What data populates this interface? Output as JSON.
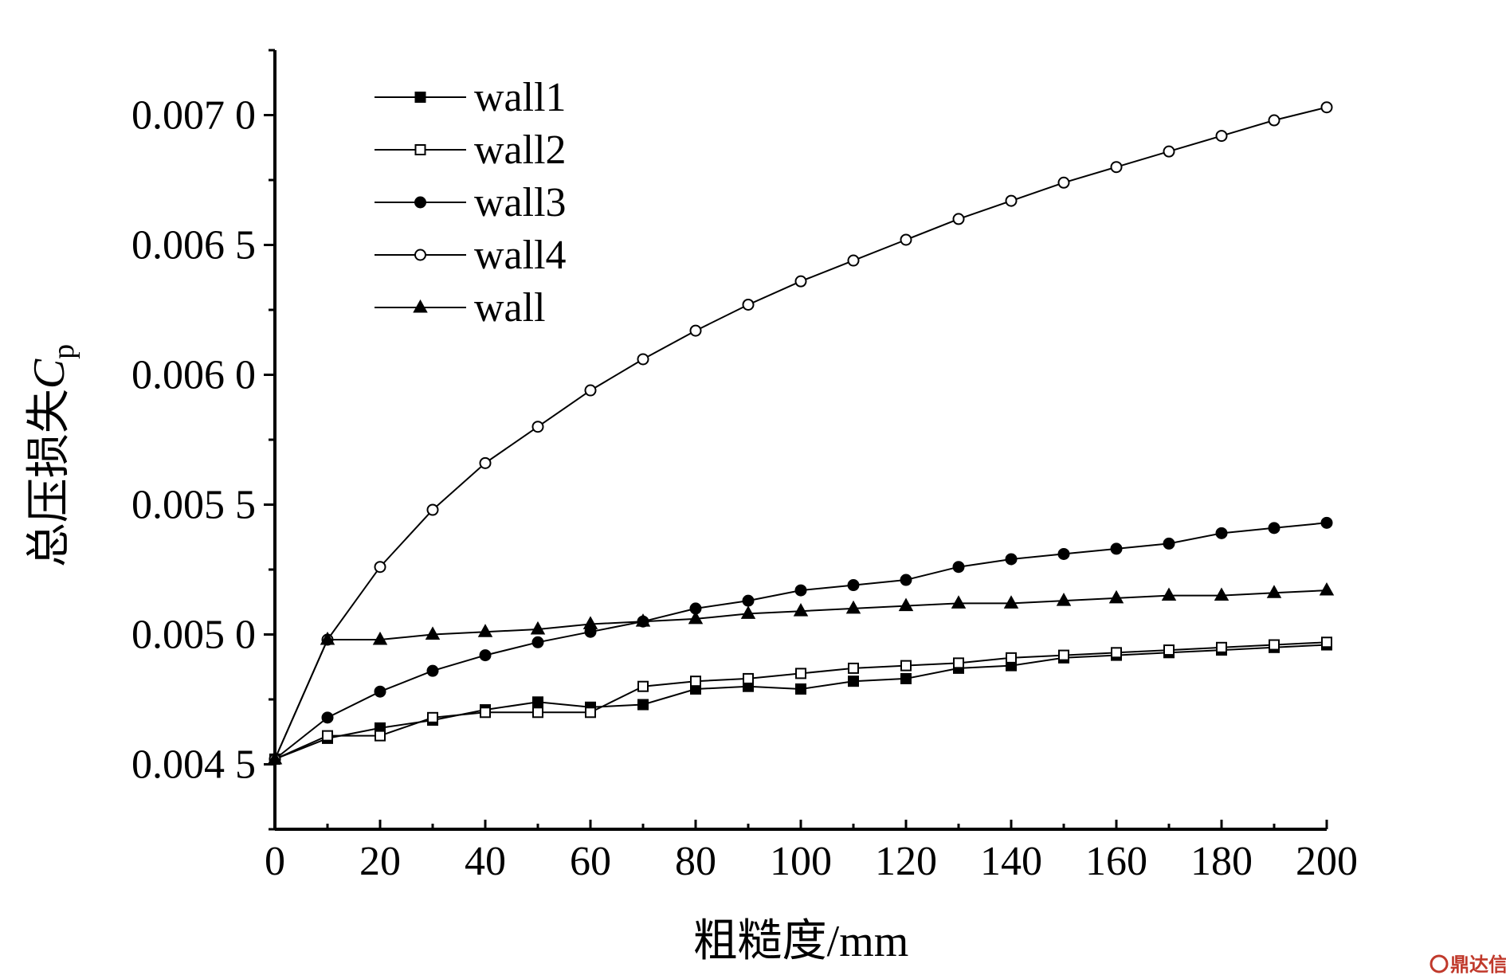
{
  "chart_data": {
    "type": "line",
    "title": "",
    "xlabel": "粗糙度/mm",
    "ylabel": {
      "main": "总压损失",
      "symbol": "C",
      "subscript": "p"
    },
    "xlim": [
      0,
      200
    ],
    "ylim": [
      0.00425,
      0.00725
    ],
    "x_ticks": [
      0,
      20,
      40,
      60,
      80,
      100,
      120,
      140,
      160,
      180,
      200
    ],
    "x_tick_labels": [
      "0",
      "20",
      "40",
      "60",
      "80",
      "100",
      "120",
      "140",
      "160",
      "180",
      "200"
    ],
    "y_ticks": [
      0.0045,
      0.005,
      0.0055,
      0.006,
      0.0065,
      0.007
    ],
    "y_tick_labels": [
      "0.004 5",
      "0.005 0",
      "0.005 5",
      "0.006 0",
      "0.006 5",
      "0.007 0"
    ],
    "grid": false,
    "legend_position": "top-left",
    "x": [
      0,
      10,
      20,
      30,
      40,
      50,
      60,
      70,
      80,
      90,
      100,
      110,
      120,
      130,
      140,
      150,
      160,
      170,
      180,
      190,
      200
    ],
    "series": [
      {
        "name": "wall1",
        "marker": "square-filled",
        "values": [
          0.00452,
          0.0046,
          0.00464,
          0.00467,
          0.00471,
          0.00474,
          0.00472,
          0.00473,
          0.00479,
          0.0048,
          0.00479,
          0.00482,
          0.00483,
          0.00487,
          0.00488,
          0.00491,
          0.00492,
          0.00493,
          0.00494,
          0.00495,
          0.00496
        ]
      },
      {
        "name": "wall2",
        "marker": "square-open",
        "values": [
          0.00452,
          0.00461,
          0.00461,
          0.00468,
          0.0047,
          0.0047,
          0.0047,
          0.0048,
          0.00482,
          0.00483,
          0.00485,
          0.00487,
          0.00488,
          0.00489,
          0.00491,
          0.00492,
          0.00493,
          0.00494,
          0.00495,
          0.00496,
          0.00497
        ]
      },
      {
        "name": "wall3",
        "marker": "circle-filled",
        "values": [
          0.00452,
          0.00468,
          0.00478,
          0.00486,
          0.00492,
          0.00497,
          0.00501,
          0.00505,
          0.0051,
          0.00513,
          0.00517,
          0.00519,
          0.00521,
          0.00526,
          0.00529,
          0.00531,
          0.00533,
          0.00535,
          0.00539,
          0.00541,
          0.00543
        ]
      },
      {
        "name": "wall4",
        "marker": "circle-open",
        "values": [
          0.00452,
          0.00498,
          0.00526,
          0.00548,
          0.00566,
          0.0058,
          0.00594,
          0.00606,
          0.00617,
          0.00627,
          0.00636,
          0.00644,
          0.00652,
          0.0066,
          0.00667,
          0.00674,
          0.0068,
          0.00686,
          0.00692,
          0.00698,
          0.00703
        ]
      },
      {
        "name": "wall",
        "marker": "triangle-filled",
        "values": [
          0.00452,
          0.00498,
          0.00498,
          0.005,
          0.00501,
          0.00502,
          0.00504,
          0.00505,
          0.00506,
          0.00508,
          0.00509,
          0.0051,
          0.00511,
          0.00512,
          0.00512,
          0.00513,
          0.00514,
          0.00515,
          0.00515,
          0.00516,
          0.00517
        ]
      }
    ]
  },
  "watermark": {
    "text": "鼎达信",
    "color": "#c0392b"
  }
}
